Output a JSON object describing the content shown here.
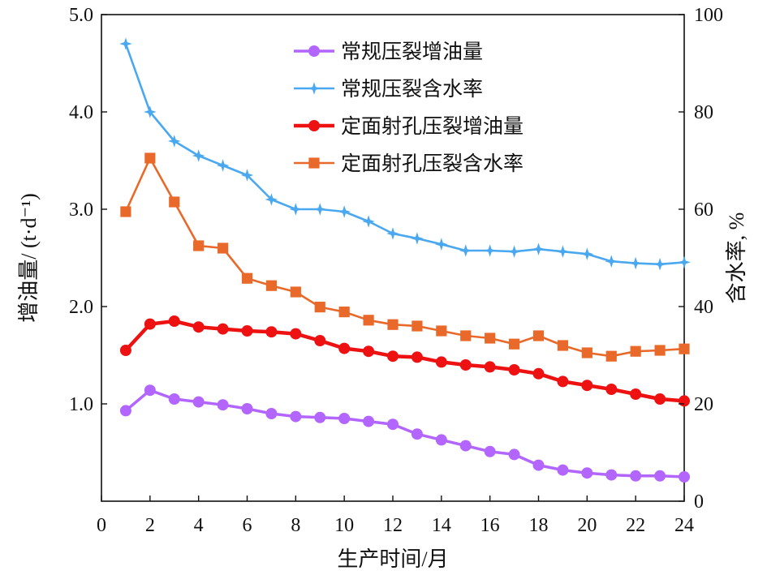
{
  "chart_data": {
    "type": "line",
    "xlabel": "生产时间/月",
    "ylabel_left": "增油量/ (t·d⁻¹)",
    "ylabel_right": "含水率, %",
    "xlim": [
      0,
      24
    ],
    "ylim_left": [
      0,
      5
    ],
    "ylim_right": [
      0,
      100
    ],
    "x_ticks": [
      0,
      2,
      4,
      6,
      8,
      10,
      12,
      14,
      16,
      18,
      20,
      22,
      24
    ],
    "x_tick_labels": [
      "0",
      "2",
      "4",
      "6",
      "8",
      "10",
      "12",
      "14",
      "16",
      "18",
      "20",
      "22",
      "24"
    ],
    "y_left_ticks": [
      1,
      2,
      3,
      4,
      5
    ],
    "y_left_tick_labels": [
      "1.0",
      "2.0",
      "3.0",
      "4.0",
      "5.0"
    ],
    "y_right_ticks": [
      0,
      20,
      40,
      60,
      80,
      100
    ],
    "y_right_tick_labels": [
      "0",
      "20",
      "40",
      "60",
      "80",
      "100"
    ],
    "grid": false,
    "legend_position": "top-center",
    "x": [
      1,
      2,
      3,
      4,
      5,
      6,
      7,
      8,
      9,
      10,
      11,
      12,
      13,
      14,
      15,
      16,
      17,
      18,
      19,
      20,
      21,
      22,
      23,
      24
    ],
    "series": [
      {
        "name": "常规压裂增油量",
        "axis": "left",
        "color": "#b266ff",
        "marker": "circle",
        "values": [
          0.93,
          1.14,
          1.05,
          1.02,
          0.99,
          0.95,
          0.9,
          0.87,
          0.86,
          0.85,
          0.82,
          0.79,
          0.69,
          0.63,
          0.57,
          0.51,
          0.48,
          0.37,
          0.32,
          0.29,
          0.27,
          0.26,
          0.26,
          0.25
        ]
      },
      {
        "name": "常规压裂含水率",
        "axis": "right",
        "color": "#4aa8f0",
        "marker": "star",
        "values": [
          94,
          80,
          74,
          71,
          69,
          67,
          62,
          60,
          60,
          59.5,
          57.5,
          55,
          54,
          52.8,
          51.5,
          51.5,
          51.3,
          51.8,
          51.3,
          50.8,
          49.3,
          48.9,
          48.7,
          49.1
        ]
      },
      {
        "name": "定面射孔压裂增油量",
        "axis": "left",
        "color": "#ee1111",
        "marker": "circle",
        "values": [
          1.55,
          1.82,
          1.85,
          1.79,
          1.77,
          1.75,
          1.74,
          1.72,
          1.65,
          1.57,
          1.54,
          1.49,
          1.48,
          1.43,
          1.4,
          1.38,
          1.35,
          1.31,
          1.23,
          1.19,
          1.15,
          1.1,
          1.05,
          1.03
        ]
      },
      {
        "name": "定面射孔压裂含水率",
        "axis": "right",
        "color": "#e8692a",
        "marker": "square",
        "values": [
          59.5,
          70.5,
          61.5,
          52.5,
          52,
          45.8,
          44.3,
          43,
          39.9,
          38.9,
          37.2,
          36.3,
          36,
          35,
          34,
          33.5,
          32.3,
          34,
          32,
          30.5,
          29.8,
          30.8,
          31,
          31.3
        ]
      }
    ]
  }
}
